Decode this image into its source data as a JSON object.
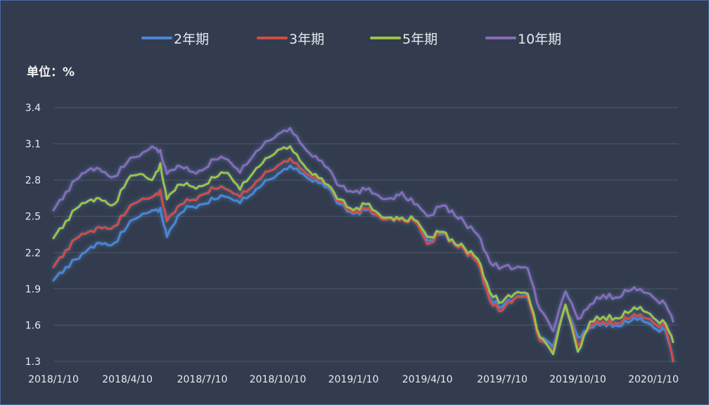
{
  "chart_data": {
    "type": "line",
    "unit_label": "单位：%",
    "y_ticks": [
      "3.4",
      "3.1",
      "2.8",
      "2.5",
      "2.2",
      "1.9",
      "1.6",
      "1.3"
    ],
    "ylim": [
      1.3,
      3.4
    ],
    "x_ticks": [
      "2018/1/10",
      "2018/4/10",
      "2018/7/10",
      "2018/10/10",
      "2019/1/10",
      "2019/4/10",
      "2019/7/10",
      "2019/10/10",
      "2020/1/10"
    ],
    "x": [
      "2018/1/10",
      "2018/1/25",
      "2018/2/10",
      "2018/2/25",
      "2018/3/10",
      "2018/3/25",
      "2018/4/10",
      "2018/4/25",
      "2018/5/10",
      "2018/5/20",
      "2018/5/28",
      "2018/6/10",
      "2018/6/25",
      "2018/7/10",
      "2018/7/25",
      "2018/8/10",
      "2018/8/25",
      "2018/9/10",
      "2018/9/25",
      "2018/10/10",
      "2018/10/25",
      "2018/11/10",
      "2018/11/25",
      "2018/12/10",
      "2018/12/25",
      "2019/1/10",
      "2019/1/25",
      "2019/2/10",
      "2019/2/25",
      "2019/3/10",
      "2019/3/25",
      "2019/4/10",
      "2019/4/25",
      "2019/5/10",
      "2019/5/25",
      "2019/6/10",
      "2019/6/25",
      "2019/7/10",
      "2019/7/25",
      "2019/8/10",
      "2019/8/25",
      "2019/9/10",
      "2019/9/25",
      "2019/10/10",
      "2019/10/25",
      "2019/11/10",
      "2019/11/25",
      "2019/12/10",
      "2019/12/25",
      "2020/1/10",
      "2020/1/25",
      "2020/2/3"
    ],
    "series": [
      {
        "name": "2年期",
        "color": "#4a86d6",
        "values": [
          1.97,
          2.08,
          2.15,
          2.25,
          2.27,
          2.28,
          2.42,
          2.5,
          2.55,
          2.57,
          2.33,
          2.5,
          2.58,
          2.6,
          2.64,
          2.66,
          2.61,
          2.69,
          2.8,
          2.85,
          2.92,
          2.85,
          2.8,
          2.74,
          2.6,
          2.52,
          2.55,
          2.5,
          2.49,
          2.49,
          2.47,
          2.3,
          2.35,
          2.3,
          2.23,
          2.13,
          1.82,
          1.75,
          1.82,
          1.84,
          1.5,
          1.42,
          1.75,
          1.5,
          1.58,
          1.62,
          1.6,
          1.62,
          1.66,
          1.58,
          1.55,
          1.31
        ]
      },
      {
        "name": "3年期",
        "color": "#d44b44",
        "values": [
          2.08,
          2.22,
          2.33,
          2.38,
          2.4,
          2.42,
          2.55,
          2.63,
          2.66,
          2.72,
          2.46,
          2.58,
          2.63,
          2.68,
          2.73,
          2.72,
          2.66,
          2.75,
          2.87,
          2.92,
          2.98,
          2.88,
          2.83,
          2.76,
          2.62,
          2.53,
          2.56,
          2.5,
          2.48,
          2.48,
          2.46,
          2.27,
          2.36,
          2.3,
          2.22,
          2.12,
          1.8,
          1.72,
          1.82,
          1.83,
          1.47,
          1.38,
          1.77,
          1.43,
          1.6,
          1.63,
          1.62,
          1.65,
          1.69,
          1.62,
          1.58,
          1.3
        ]
      },
      {
        "name": "5年期",
        "color": "#9fc246",
        "values": [
          2.32,
          2.46,
          2.58,
          2.64,
          2.63,
          2.6,
          2.8,
          2.85,
          2.8,
          2.94,
          2.64,
          2.76,
          2.75,
          2.75,
          2.82,
          2.86,
          2.72,
          2.86,
          2.98,
          3.05,
          3.08,
          2.93,
          2.85,
          2.76,
          2.64,
          2.55,
          2.6,
          2.52,
          2.49,
          2.49,
          2.47,
          2.33,
          2.37,
          2.31,
          2.24,
          2.15,
          1.87,
          1.79,
          1.86,
          1.86,
          1.5,
          1.36,
          1.77,
          1.38,
          1.63,
          1.67,
          1.66,
          1.7,
          1.75,
          1.66,
          1.61,
          1.46
        ]
      },
      {
        "name": "10年期",
        "color": "#8a6ab8",
        "values": [
          2.55,
          2.7,
          2.82,
          2.9,
          2.87,
          2.83,
          2.95,
          3.0,
          3.08,
          3.05,
          2.85,
          2.92,
          2.87,
          2.88,
          2.97,
          2.97,
          2.86,
          3.0,
          3.12,
          3.18,
          3.23,
          3.08,
          3.0,
          2.9,
          2.75,
          2.7,
          2.72,
          2.67,
          2.65,
          2.7,
          2.6,
          2.5,
          2.58,
          2.55,
          2.45,
          2.35,
          2.12,
          2.08,
          2.07,
          2.07,
          1.73,
          1.55,
          1.88,
          1.65,
          1.77,
          1.85,
          1.83,
          1.88,
          1.9,
          1.83,
          1.77,
          1.63
        ]
      }
    ]
  }
}
